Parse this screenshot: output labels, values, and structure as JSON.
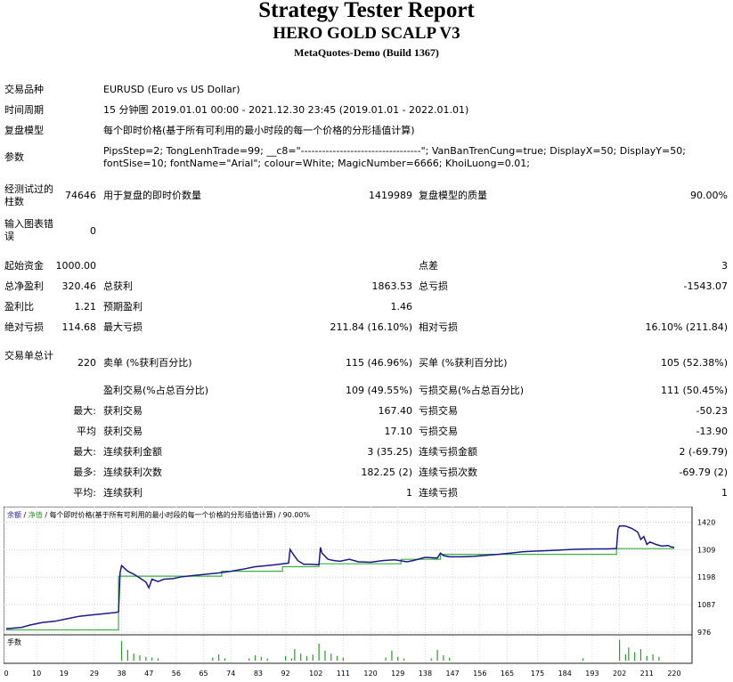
{
  "header": {
    "title": "Strategy Tester Report",
    "expert": "HERO GOLD SCALP V3",
    "build": "MetaQuotes-Demo (Build 1367)"
  },
  "info": {
    "symbol_label": "交易品种",
    "symbol": "EURUSD (Euro vs US Dollar)",
    "period_label": "时间周期",
    "period": "15 分钟图 2019.01.01 00:00 - 2021.12.30 23:45 (2019.01.01 - 2022.01.01)",
    "model_label": "复盘模型",
    "model": "每个即时价格(基于所有可利用的最小时段的每一个价格的分形插值计算)",
    "params_label": "参数",
    "params": "PipsStep=2; TongLenhTrade=99; __c8=\"----------------------------------\"; VanBanTrenCung=true; DisplayX=50; DisplayY=50; fontSise=10; fontName=\"Arial\"; colour=White; MagicNumber=6666; KhoiLuong=0.01;"
  },
  "stats": {
    "bars_label": "经测试过的柱数",
    "bars": "74646",
    "ticks_label": "用于复盘的即时价数量",
    "ticks": "1419989",
    "quality_label": "复盘模型的质量",
    "quality": "90.00%",
    "mismatch_label": "输入图表错误",
    "mismatch": "0",
    "deposit_label": "起始资金",
    "deposit": "1000.00",
    "spread_label": "点差",
    "spread": "3",
    "net_label": "总净盈利",
    "net": "320.46",
    "gross_profit_label": "总获利",
    "gross_profit": "1863.53",
    "gross_loss_label": "总亏损",
    "gross_loss": "-1543.07",
    "pf_label": "盈利比",
    "pf": "1.21",
    "payoff_label": "预期盈利",
    "payoff": "1.46",
    "abs_dd_label": "绝对亏损",
    "abs_dd": "114.68",
    "max_dd_label": "最大亏损",
    "max_dd": "211.84 (16.10%)",
    "rel_dd_label": "相对亏损",
    "rel_dd": "16.10% (211.84)",
    "total_trades_label": "交易单总计",
    "total_trades": "220",
    "short_label": "卖单 (%获利百分比)",
    "short": "115 (46.96%)",
    "long_label": "买单 (%获利百分比)",
    "long": "105 (52.38%)",
    "profit_trades_label": "盈利交易(%占总百分比)",
    "profit_trades": "109 (49.55%)",
    "loss_trades_label": "亏损交易(%占总百分比)",
    "loss_trades": "111 (50.45%)",
    "largest_label": "最大:",
    "largest_profit_label": "获利交易",
    "largest_profit": "167.40",
    "largest_loss_label": "亏损交易",
    "largest_loss": "-50.23",
    "average_label": "平均",
    "average_profit_label": "获利交易",
    "average_profit": "17.10",
    "average_loss_label": "亏损交易",
    "average_loss": "-13.90",
    "max_label": "最大:",
    "max_cons_wins_label": "连续获利金额",
    "max_cons_wins": "3 (35.25)",
    "max_cons_losses_label": "连续亏损金额",
    "max_cons_losses": "2 (-69.79)",
    "most_label": "最多:",
    "most_cons_profit_label": "连续获利次数",
    "most_cons_profit": "182.25 (2)",
    "most_cons_loss_label": "连续亏损次数",
    "most_cons_loss": "-69.79 (2)",
    "avg_cons_label": "平均:",
    "avg_cons_wins_label": "连续获利",
    "avg_cons_wins": "1",
    "avg_cons_losses_label": "连续亏损",
    "avg_cons_losses": "1"
  },
  "chart_data": {
    "type": "line",
    "legend": {
      "balance": "余额",
      "sep1": " / ",
      "equity": "净值",
      "sep2": " / ",
      "model": "每个即时价格(基于所有可利用的最小时段的每一个价格的分形插值计算)",
      "quality": " / 90.00%"
    },
    "volume_label": "手数",
    "xlim": [
      0,
      225
    ],
    "ylim": [
      976,
      1454
    ],
    "y_ticks": [
      "1420",
      "1309",
      "1198",
      "1087",
      "976"
    ],
    "x_ticks": [
      0,
      10,
      19,
      29,
      38,
      47,
      56,
      65,
      74,
      83,
      92,
      102,
      111,
      120,
      129,
      138,
      147,
      156,
      165,
      175,
      184,
      193,
      202,
      211,
      220
    ],
    "series": [
      {
        "name": "余额",
        "color": "#1a1a8c",
        "x": [
          0,
          5,
          8,
          12,
          16,
          20,
          24,
          28,
          32,
          36,
          37,
          37.5,
          38,
          40,
          42,
          44,
          46,
          47,
          48,
          50,
          52,
          55,
          58,
          62,
          66,
          70,
          74,
          78,
          82,
          86,
          90,
          93,
          93.5,
          94,
          96,
          98,
          100,
          103,
          103.5,
          104,
          106,
          108,
          110,
          113,
          116,
          120,
          124,
          128,
          132,
          134,
          138,
          142,
          143,
          144,
          146,
          150,
          154,
          158,
          162,
          166,
          170,
          174,
          178,
          182,
          186,
          190,
          194,
          198,
          200,
          201,
          201.5,
          202,
          204,
          206,
          208,
          209,
          210,
          211,
          212,
          214,
          216,
          218,
          219,
          220
        ],
        "y": [
          990,
          995,
          1005,
          1015,
          1020,
          1030,
          1040,
          1045,
          1050,
          1055,
          1058,
          1215,
          1245,
          1222,
          1210,
          1195,
          1178,
          1155,
          1190,
          1180,
          1190,
          1192,
          1200,
          1205,
          1210,
          1215,
          1222,
          1230,
          1240,
          1245,
          1250,
          1255,
          1310,
          1300,
          1265,
          1250,
          1250,
          1248,
          1318,
          1295,
          1270,
          1265,
          1262,
          1270,
          1260,
          1258,
          1265,
          1268,
          1260,
          1265,
          1278,
          1275,
          1295,
          1285,
          1280,
          1280,
          1282,
          1286,
          1290,
          1295,
          1300,
          1303,
          1305,
          1307,
          1310,
          1311,
          1312,
          1312,
          1313,
          1314,
          1392,
          1405,
          1404,
          1395,
          1380,
          1350,
          1362,
          1330,
          1340,
          1330,
          1323,
          1326,
          1320,
          1318
        ]
      },
      {
        "name": "净值",
        "color": "#3cb043",
        "x": [
          0,
          37,
          37,
          71,
          71,
          91,
          91,
          103,
          103,
          130,
          130,
          143,
          143,
          201,
          201,
          220
        ],
        "y": [
          985,
          985,
          1202,
          1202,
          1222,
          1222,
          1240,
          1240,
          1252,
          1252,
          1270,
          1270,
          1290,
          1290,
          1313,
          1313
        ]
      },
      {
        "name": "手数",
        "color": "#2a9a2a",
        "x": [
          38,
          40,
          42,
          44,
          46,
          48,
          50,
          68,
          70,
          72,
          80,
          82,
          84,
          86,
          92,
          94,
          95,
          97,
          99,
          101,
          103,
          105,
          107,
          109,
          111,
          125,
          127,
          129,
          131,
          140,
          142,
          144,
          146,
          190,
          202,
          204,
          205,
          207,
          209,
          211,
          213,
          215
        ],
        "y": [
          25,
          14,
          9,
          7,
          5,
          4,
          3,
          4,
          8,
          3,
          3,
          7,
          5,
          3,
          6,
          3,
          15,
          9,
          6,
          8,
          22,
          13,
          9,
          6,
          4,
          4,
          13,
          5,
          3,
          3,
          14,
          7,
          4,
          3,
          27,
          8,
          17,
          11,
          15,
          6,
          8,
          5
        ]
      }
    ]
  }
}
